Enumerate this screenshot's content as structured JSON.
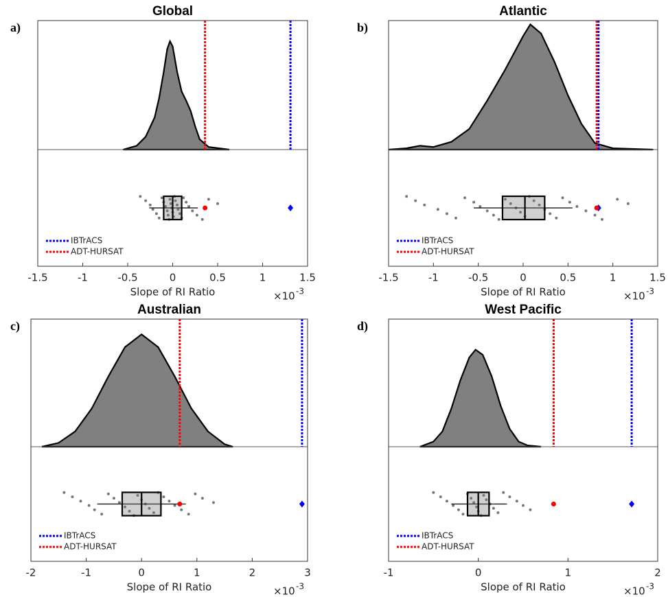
{
  "chart_data": [
    {
      "type": "raincloud",
      "panel_label": "a)",
      "title": "Global",
      "xlabel": "Slope of RI Ratio",
      "x_scale_label": "×10",
      "x_scale_exponent": "-3",
      "xlim": [
        -1.5,
        1.5
      ],
      "xticks": [
        -1.5,
        -1,
        -0.5,
        0,
        0.5,
        1,
        1.5
      ],
      "density_ylim": [
        0,
        1
      ],
      "density": {
        "x": [
          -0.55,
          -0.4,
          -0.3,
          -0.2,
          -0.15,
          -0.1,
          -0.06,
          -0.03,
          0,
          0.05,
          0.1,
          0.15,
          0.2,
          0.25,
          0.3,
          0.4,
          0.63
        ],
        "y": [
          0,
          0.03,
          0.1,
          0.25,
          0.4,
          0.6,
          0.78,
          0.84,
          0.8,
          0.6,
          0.45,
          0.38,
          0.3,
          0.18,
          0.08,
          0.02,
          0
        ]
      },
      "box": {
        "whisker_low": -0.26,
        "q1": -0.1,
        "median": 0,
        "q3": 0.1,
        "whisker_high": 0.28
      },
      "points": [
        -0.36,
        -0.3,
        -0.25,
        -0.22,
        -0.18,
        -0.15,
        -0.12,
        -0.1,
        -0.08,
        -0.06,
        -0.05,
        -0.04,
        -0.03,
        -0.02,
        -0.01,
        0,
        0.01,
        0.02,
        0.03,
        0.05,
        0.06,
        0.08,
        0.1,
        0.12,
        0.15,
        0.18,
        0.22,
        0.27,
        0.33,
        0.4,
        0.5
      ],
      "point_color": "#777777",
      "series": [
        {
          "name": "IBTrACS",
          "color": "#0000ff",
          "value": 1.31
        },
        {
          "name": "ADT-HURSAT",
          "color": "#ff0000",
          "value": 0.36
        }
      ]
    },
    {
      "type": "raincloud",
      "panel_label": "b)",
      "title": "Atlantic",
      "xlabel": "Slope of RI Ratio",
      "x_scale_label": "×10",
      "x_scale_exponent": "-3",
      "xlim": [
        -1.5,
        1.5
      ],
      "xticks": [
        -1.5,
        -1,
        -0.5,
        0,
        0.5,
        1,
        1.5
      ],
      "density_ylim": [
        0,
        1
      ],
      "density": {
        "x": [
          -1.5,
          -1.3,
          -1.15,
          -1.0,
          -0.8,
          -0.6,
          -0.4,
          -0.2,
          0,
          0.08,
          0.2,
          0.35,
          0.5,
          0.65,
          0.8,
          1.0,
          1.45
        ],
        "y": [
          0,
          0.01,
          0.03,
          0.02,
          0.06,
          0.16,
          0.38,
          0.62,
          0.88,
          0.97,
          0.9,
          0.68,
          0.42,
          0.2,
          0.05,
          0.01,
          0
        ]
      },
      "box": {
        "whisker_low": -0.55,
        "q1": -0.23,
        "median": 0.02,
        "q3": 0.24,
        "whisker_high": 0.55
      },
      "points": [
        -1.3,
        -1.2,
        -1.1,
        -0.95,
        -0.85,
        -0.75,
        -0.65,
        -0.55,
        -0.48,
        -0.4,
        -0.33,
        -0.27,
        -0.2,
        -0.14,
        -0.08,
        -0.03,
        0.02,
        0.07,
        0.12,
        0.18,
        0.24,
        0.3,
        0.37,
        0.44,
        0.52,
        0.6,
        0.7,
        0.8,
        0.88,
        1.05,
        1.17
      ],
      "point_color": "#777777",
      "series": [
        {
          "name": "IBTrACS",
          "color": "#0000ff",
          "value": 0.84
        },
        {
          "name": "ADT-HURSAT",
          "color": "#ff0000",
          "value": 0.82
        }
      ]
    },
    {
      "type": "raincloud",
      "panel_label": "c)",
      "title": "Australian",
      "xlabel": "Slope of RI Ratio",
      "x_scale_label": "×10",
      "x_scale_exponent": "-3",
      "xlim": [
        -2,
        3
      ],
      "xticks": [
        -2,
        -1,
        0,
        1,
        2,
        3
      ],
      "density_ylim": [
        0,
        1
      ],
      "density": {
        "x": [
          -1.8,
          -1.5,
          -1.2,
          -0.9,
          -0.6,
          -0.3,
          0,
          0.3,
          0.6,
          0.9,
          1.2,
          1.5,
          1.65
        ],
        "y": [
          0,
          0.03,
          0.12,
          0.3,
          0.55,
          0.78,
          0.88,
          0.78,
          0.55,
          0.3,
          0.12,
          0.02,
          0
        ]
      },
      "box": {
        "whisker_low": -0.8,
        "q1": -0.35,
        "median": 0,
        "q3": 0.35,
        "whisker_high": 0.8
      },
      "points": [
        -1.4,
        -1.25,
        -1.1,
        -0.95,
        -0.85,
        -0.72,
        -0.6,
        -0.5,
        -0.4,
        -0.3,
        -0.22,
        -0.14,
        -0.07,
        0,
        0.07,
        0.14,
        0.22,
        0.3,
        0.4,
        0.5,
        0.6,
        0.72,
        0.85,
        0.97,
        1.1,
        1.3
      ],
      "point_color": "#777777",
      "series": [
        {
          "name": "IBTrACS",
          "color": "#0000ff",
          "value": 2.9
        },
        {
          "name": "ADT-HURSAT",
          "color": "#ff0000",
          "value": 0.69
        }
      ]
    },
    {
      "type": "raincloud",
      "panel_label": "d)",
      "title": "West Pacific",
      "xlabel": "Slope of RI Ratio",
      "x_scale_label": "×10",
      "x_scale_exponent": "-3",
      "xlim": [
        -1,
        2
      ],
      "xticks": [
        -1,
        0,
        1,
        2
      ],
      "density_ylim": [
        0,
        1
      ],
      "density": {
        "x": [
          -0.65,
          -0.5,
          -0.4,
          -0.3,
          -0.2,
          -0.1,
          -0.03,
          0.05,
          0.15,
          0.25,
          0.35,
          0.45,
          0.55,
          0.7
        ],
        "y": [
          0,
          0.04,
          0.12,
          0.3,
          0.52,
          0.7,
          0.76,
          0.72,
          0.55,
          0.32,
          0.14,
          0.04,
          0.01,
          0
        ]
      },
      "box": {
        "whisker_low": -0.3,
        "q1": -0.12,
        "median": 0,
        "q3": 0.12,
        "whisker_high": 0.32
      },
      "points": [
        -0.5,
        -0.42,
        -0.35,
        -0.28,
        -0.22,
        -0.17,
        -0.12,
        -0.08,
        -0.05,
        -0.02,
        0,
        0.03,
        0.06,
        0.09,
        0.13,
        0.17,
        0.22,
        0.28,
        0.35,
        0.43,
        0.5,
        0.58
      ],
      "point_color": "#777777",
      "series": [
        {
          "name": "IBTrACS",
          "color": "#0000ff",
          "value": 1.71
        },
        {
          "name": "ADT-HURSAT",
          "color": "#ff0000",
          "value": 0.84
        }
      ]
    }
  ]
}
